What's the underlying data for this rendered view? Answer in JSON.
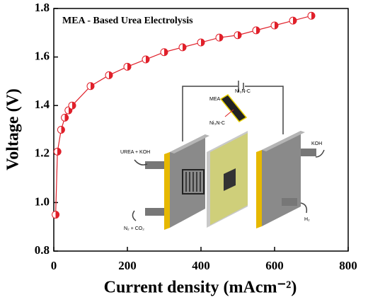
{
  "chart_data": {
    "type": "line",
    "title": "MEA - Based Urea Electrolysis",
    "xlabel": "Current density (mAcm⁻²)",
    "ylabel": "Voltage (V)",
    "x": [
      5,
      10,
      20,
      30,
      40,
      50,
      100,
      150,
      200,
      250,
      300,
      350,
      400,
      450,
      500,
      550,
      600,
      650,
      700
    ],
    "series": [
      {
        "name": "MEA",
        "color": "#e0202a",
        "values": [
          0.95,
          1.21,
          1.3,
          1.35,
          1.38,
          1.4,
          1.48,
          1.525,
          1.56,
          1.59,
          1.62,
          1.64,
          1.66,
          1.68,
          1.69,
          1.71,
          1.73,
          1.75,
          1.77
        ]
      }
    ],
    "xlim": [
      0,
      800
    ],
    "xticks": [
      0,
      200,
      400,
      600,
      800
    ],
    "ylim": [
      0.8,
      1.8
    ],
    "yticks": [
      0.8,
      {
        "value": 1,
        "label": "1.0"
      },
      1.2,
      1.4,
      1.6,
      1.8
    ],
    "inset": {
      "labels": [
        "MEA",
        "Ni₃N-C",
        "Ni₃N-C",
        "UREA + KOH",
        "KOH",
        "N₂ + CO₂",
        "H₂"
      ]
    }
  }
}
